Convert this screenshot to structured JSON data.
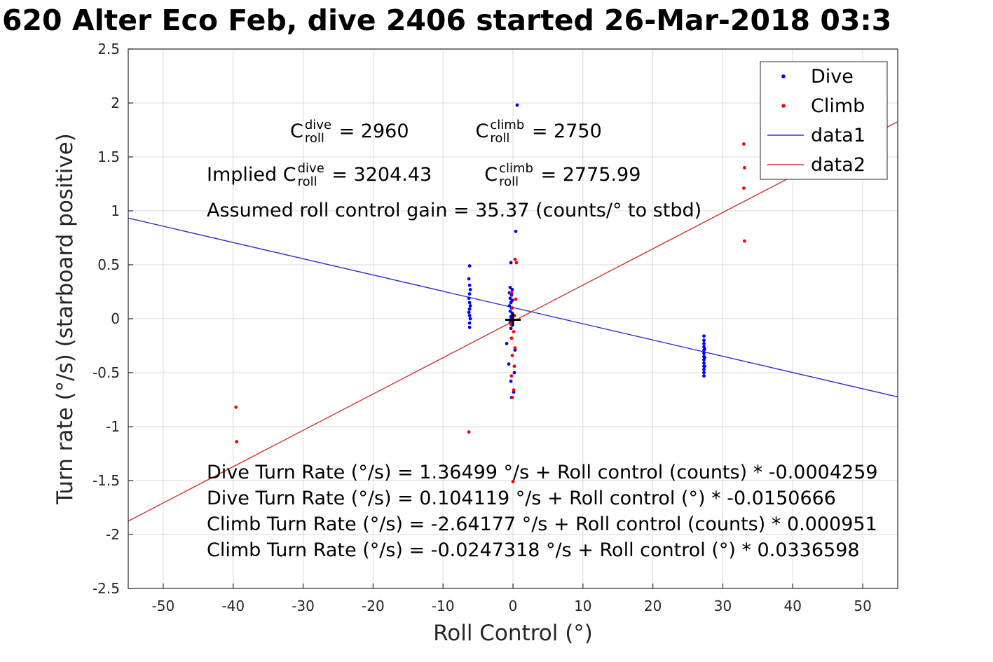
{
  "chart_data": {
    "type": "scatter",
    "title": "620 Alter Eco Feb, dive 2406 started 26-Mar-2018 03:3",
    "xlabel": "Roll Control (°)",
    "ylabel": "Turn rate (°/s) (starboard positive)",
    "xlim": [
      -55,
      55
    ],
    "ylim": [
      -2.5,
      2.5
    ],
    "grid": true,
    "xticks": [
      -50,
      -40,
      -30,
      -20,
      -10,
      0,
      10,
      20,
      30,
      40,
      50
    ],
    "xticklabels": [
      "-50",
      "-40",
      "-30",
      "-20",
      "-10",
      "0",
      "10",
      "20",
      "30",
      "40",
      "50"
    ],
    "yticks": [
      -2.5,
      -2,
      -1.5,
      -1,
      -0.5,
      0,
      0.5,
      1,
      1.5,
      2,
      2.5
    ],
    "yticklabels": [
      "-2.5",
      "-2",
      "-1.5",
      "-1",
      "-0.5",
      "0",
      "0.5",
      "1",
      "1.5",
      "2",
      "2.5"
    ],
    "colors": {
      "dive": "#0000ff",
      "climb": "#ff0000",
      "data1": "#3030cf",
      "data2": "#d63232",
      "grid": "#d9d9d9",
      "axis": "#262626",
      "text": "#262626"
    },
    "legend": {
      "position": "top-right",
      "entries": [
        {
          "label": "Dive",
          "type": "marker",
          "color": "#0000ff"
        },
        {
          "label": "Climb",
          "type": "marker",
          "color": "#ff0000"
        },
        {
          "label": "data1",
          "type": "line",
          "color": "#3030cf"
        },
        {
          "label": "data2",
          "type": "line",
          "color": "#d63232"
        }
      ]
    },
    "series": [
      {
        "name": "Dive",
        "type": "scatter",
        "color": "#0000ff",
        "points": [
          [
            -6.2,
            0.49
          ],
          [
            -6.3,
            0.37
          ],
          [
            -6.2,
            0.31
          ],
          [
            -6.1,
            0.27
          ],
          [
            -6.2,
            0.23
          ],
          [
            -6.3,
            0.19
          ],
          [
            -6.2,
            0.15
          ],
          [
            -6.1,
            0.12
          ],
          [
            -6.2,
            0.09
          ],
          [
            -6.3,
            0.06
          ],
          [
            -6.2,
            0.03
          ],
          [
            -6.1,
            0.0
          ],
          [
            -6.2,
            -0.04
          ],
          [
            -6.2,
            -0.08
          ],
          [
            0.6,
            1.98
          ],
          [
            0.4,
            0.81
          ],
          [
            -0.3,
            0.52
          ],
          [
            -0.4,
            0.29
          ],
          [
            -0.1,
            0.27
          ],
          [
            -0.5,
            0.24
          ],
          [
            -0.2,
            0.22
          ],
          [
            -0.4,
            0.19
          ],
          [
            -0.1,
            0.17
          ],
          [
            -0.3,
            0.15
          ],
          [
            -0.5,
            0.12
          ],
          [
            -0.2,
            0.1
          ],
          [
            -0.4,
            0.07
          ],
          [
            -0.1,
            0.05
          ],
          [
            -0.3,
            0.02
          ],
          [
            -0.2,
            0.0
          ],
          [
            -0.4,
            -0.03
          ],
          [
            -0.1,
            -0.06
          ],
          [
            -0.3,
            -0.09
          ],
          [
            -0.9,
            -0.23
          ],
          [
            0.3,
            -0.29
          ],
          [
            -0.6,
            -0.42
          ],
          [
            0.2,
            -0.5
          ],
          [
            -0.3,
            -0.58
          ],
          [
            0.1,
            -0.68
          ],
          [
            -0.2,
            -0.73
          ],
          [
            27.3,
            -0.16
          ],
          [
            27.3,
            -0.2
          ],
          [
            27.3,
            -0.23
          ],
          [
            27.3,
            -0.26
          ],
          [
            27.3,
            -0.29
          ],
          [
            27.3,
            -0.32
          ],
          [
            27.3,
            -0.35
          ],
          [
            27.3,
            -0.38
          ],
          [
            27.3,
            -0.41
          ],
          [
            27.3,
            -0.44
          ],
          [
            27.3,
            -0.47
          ],
          [
            27.3,
            -0.5
          ],
          [
            27.3,
            -0.53
          ],
          [
            27.4,
            -0.28
          ],
          [
            27.4,
            -0.36
          ],
          [
            27.4,
            -0.44
          ]
        ]
      },
      {
        "name": "Climb",
        "type": "scatter",
        "color": "#ff0000",
        "points": [
          [
            -39.6,
            -0.82
          ],
          [
            -39.5,
            -1.14
          ],
          [
            -6.3,
            -1.05
          ],
          [
            0.3,
            0.55
          ],
          [
            0.5,
            0.52
          ],
          [
            -0.2,
            0.24
          ],
          [
            0.4,
            0.18
          ],
          [
            -0.1,
            0.1
          ],
          [
            0.2,
            0.03
          ],
          [
            -0.3,
            -0.05
          ],
          [
            0.1,
            -0.12
          ],
          [
            -0.2,
            -0.18
          ],
          [
            0.3,
            -0.27
          ],
          [
            -0.1,
            -0.34
          ],
          [
            0.2,
            -0.44
          ],
          [
            -0.2,
            -0.53
          ],
          [
            0.1,
            -0.66
          ],
          [
            -0.1,
            -0.73
          ],
          [
            0.0,
            -1.51
          ],
          [
            33.0,
            1.62
          ],
          [
            33.1,
            1.4
          ],
          [
            33.0,
            1.21
          ],
          [
            33.1,
            0.72
          ]
        ]
      },
      {
        "name": "data1",
        "type": "line",
        "color": "#3030cf",
        "slope": -0.0150666,
        "intercept": 0.104119
      },
      {
        "name": "data2",
        "type": "line",
        "color": "#d63232",
        "slope": 0.0336598,
        "intercept": -0.0247318
      },
      {
        "name": "origin-marker",
        "type": "plus",
        "color": "#000000",
        "points": [
          [
            0,
            -0.01
          ]
        ]
      }
    ],
    "annotations": {
      "row1": {
        "c1": {
          "base": "C",
          "sup": "dive",
          "sub": "roll",
          "value": " = 2960"
        },
        "c2": {
          "base": "C",
          "sup": "climb",
          "sub": "roll",
          "value": " = 2750"
        }
      },
      "row2": {
        "prefix": "Implied ",
        "c1": {
          "base": "C",
          "sup": "dive",
          "sub": "roll",
          "value": " = 3204.43"
        },
        "c2": {
          "base": "C",
          "sup": "climb",
          "sub": "roll",
          "value": " = 2775.99"
        }
      },
      "row3": "Assumed roll control gain = 35.37 (counts/° to stbd)",
      "fit_lines": [
        "Dive Turn Rate (°/s) = 1.36499 °/s + Roll control (counts) * -0.0004259",
        "Dive Turn Rate (°/s) = 0.104119 °/s + Roll control (°) * -0.0150666",
        "Climb Turn Rate (°/s) = -2.64177 °/s + Roll control (counts) * 0.000951",
        "Climb Turn Rate (°/s) = -0.0247318 °/s + Roll control (°) * 0.0336598"
      ]
    }
  }
}
